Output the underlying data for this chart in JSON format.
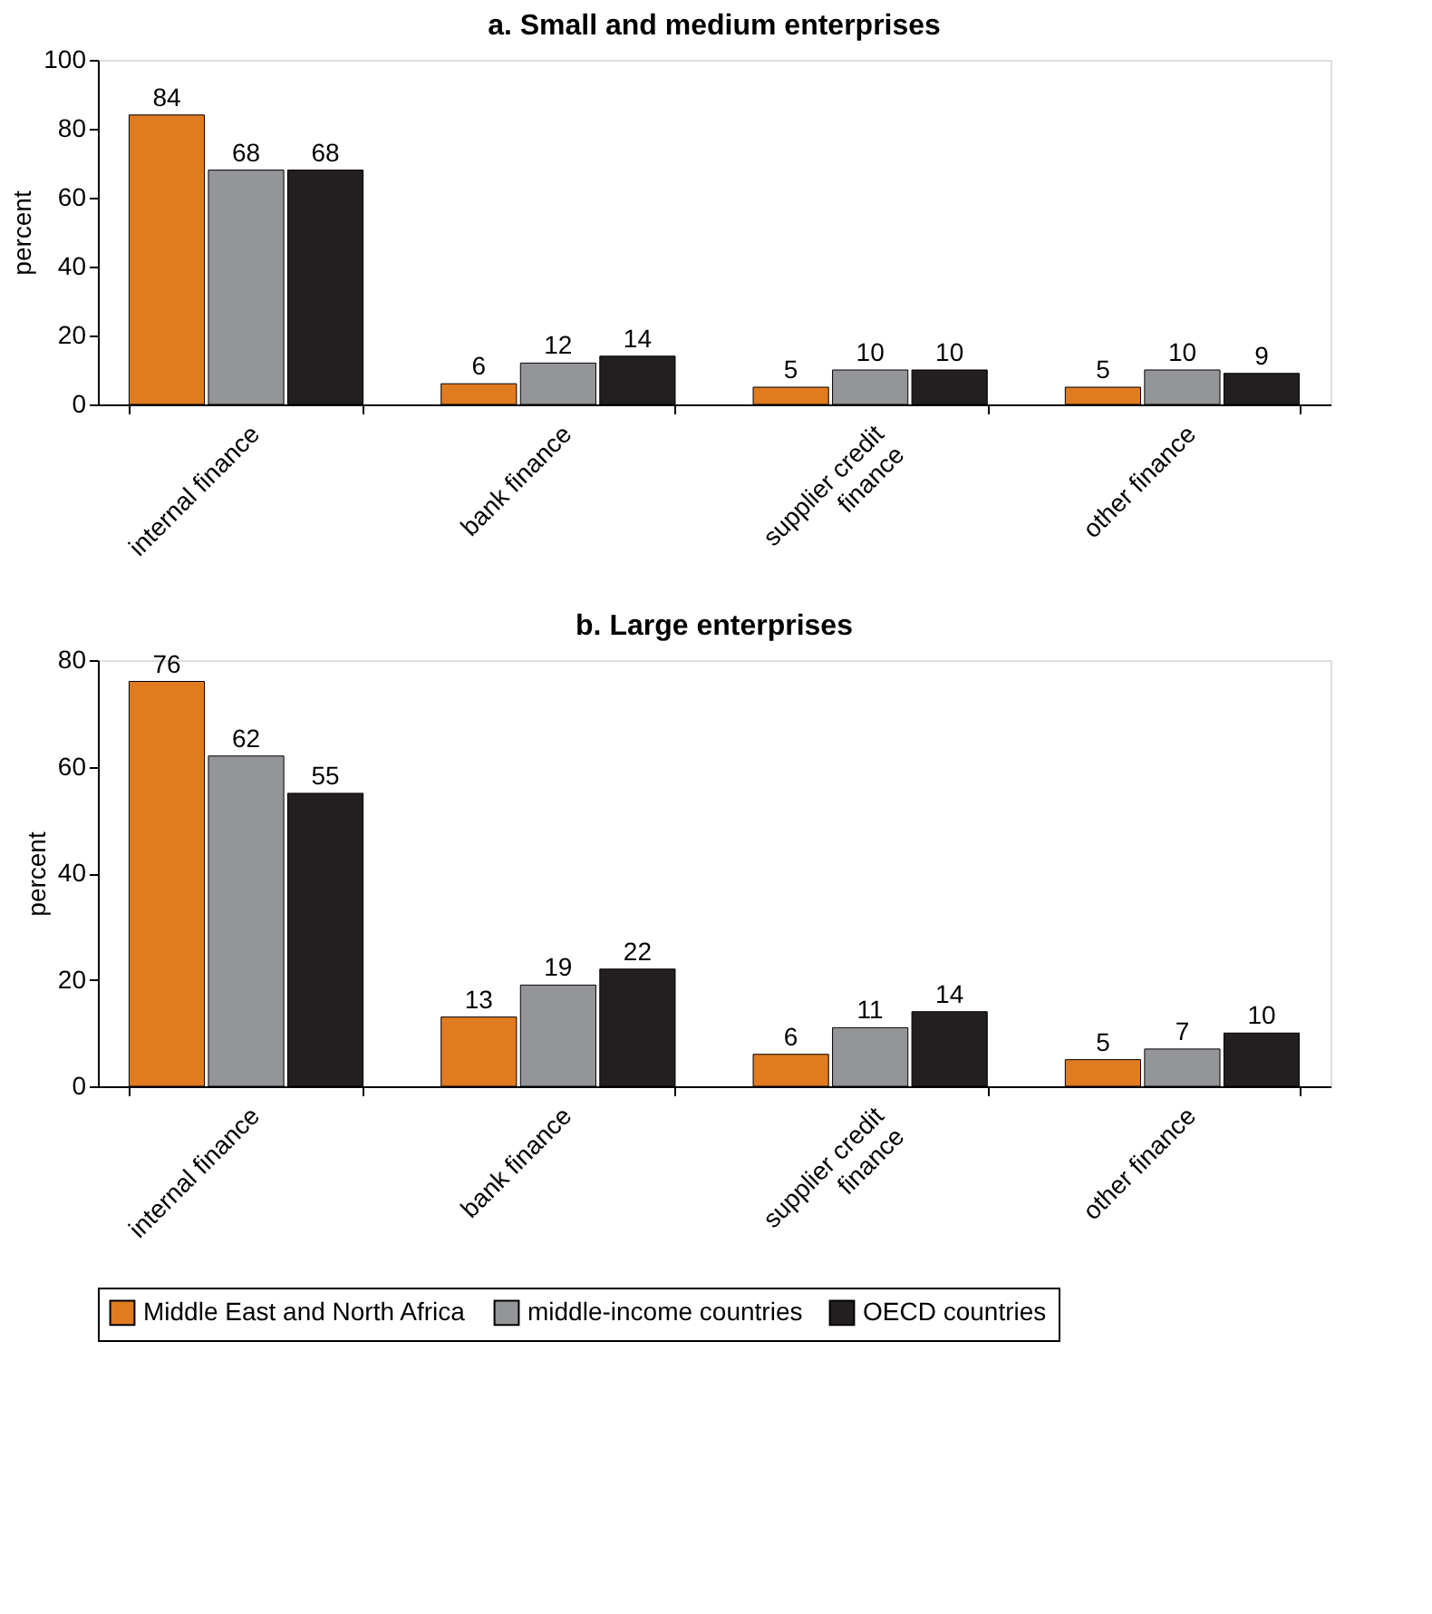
{
  "chart_data": [
    {
      "type": "bar",
      "title": "a. Small and medium enterprises",
      "ylabel": "percent",
      "categories": [
        "internal finance",
        "bank finance",
        "supplier credit finance",
        "other finance"
      ],
      "series": [
        {
          "name": "Middle East and North Africa",
          "color": "#e07b20",
          "values": [
            84,
            6,
            5,
            5
          ]
        },
        {
          "name": "middle-income countries",
          "color": "#939598",
          "values": [
            68,
            12,
            10,
            10
          ]
        },
        {
          "name": "OECD countries",
          "color": "#231f20",
          "values": [
            68,
            14,
            10,
            9
          ]
        }
      ],
      "ylim": [
        0,
        100
      ],
      "yticks": [
        0,
        20,
        40,
        60,
        80,
        100
      ],
      "data_labels": true,
      "legend": "bottom"
    },
    {
      "type": "bar",
      "title": "b. Large enterprises",
      "ylabel": "percent",
      "categories": [
        "internal finance",
        "bank finance",
        "supplier credit finance",
        "other finance"
      ],
      "series": [
        {
          "name": "Middle East and North Africa",
          "color": "#e07b20",
          "values": [
            76,
            13,
            6,
            5
          ]
        },
        {
          "name": "middle-income countries",
          "color": "#939598",
          "values": [
            62,
            19,
            11,
            7
          ]
        },
        {
          "name": "OECD countries",
          "color": "#231f20",
          "values": [
            55,
            22,
            14,
            10
          ]
        }
      ],
      "ylim": [
        0,
        80
      ],
      "yticks": [
        0,
        20,
        40,
        60,
        80
      ],
      "data_labels": true,
      "legend": "bottom"
    }
  ]
}
